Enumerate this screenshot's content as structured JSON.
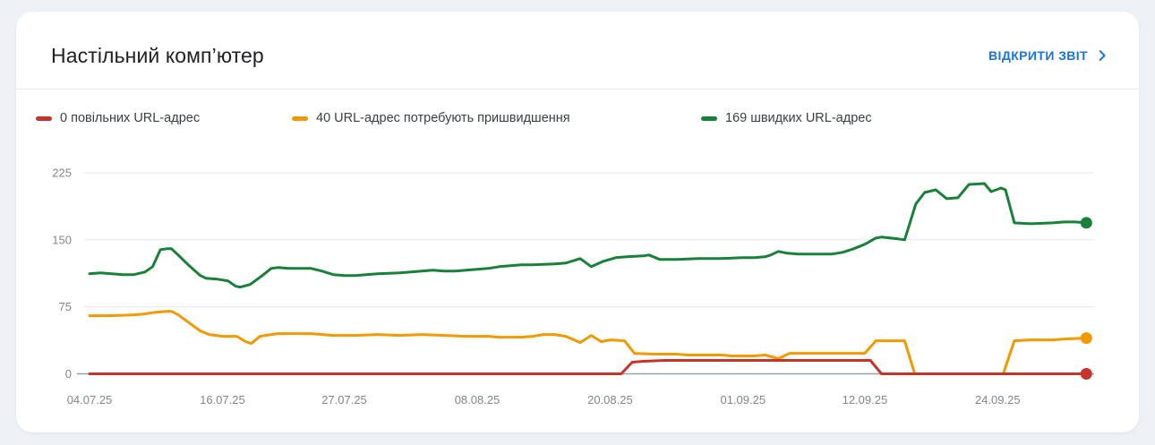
{
  "card": {
    "title": "Настільний комп’ютер",
    "action_label": "ВІДКРИТИ ЗВІТ"
  },
  "colors": {
    "link_blue": "#1a73e8",
    "slow_red": "#c5342b",
    "needs_improvement_orange": "#f29900",
    "fast_green": "#188038",
    "grid_gray": "#e8eaed",
    "axis_gray": "#9aa0a6",
    "tick_label_gray": "#80868b"
  },
  "chart_data": {
    "type": "line",
    "title": "",
    "legend_position": "top",
    "grid": "horizontal",
    "x_axis": {
      "tick_labels": [
        "04.07.25",
        "16.07.25",
        "27.07.25",
        "08.08.25",
        "20.08.25",
        "01.09.25",
        "12.09.25",
        "24.09.25"
      ],
      "tick_days": [
        0,
        12,
        23,
        35,
        47,
        59,
        70,
        82
      ],
      "domain_days": [
        0,
        90
      ]
    },
    "y_axis": {
      "ticks": [
        0,
        75,
        150,
        225
      ],
      "lim": [
        0,
        225
      ]
    },
    "series": [
      {
        "name": "0 повільних URL-адрес",
        "status": "slow",
        "color": "#c5342b",
        "current_value": 0,
        "points": [
          [
            0,
            0
          ],
          [
            48,
            0
          ],
          [
            49,
            13
          ],
          [
            50,
            14
          ],
          [
            52,
            15
          ],
          [
            70.5,
            15
          ],
          [
            71.5,
            0
          ],
          [
            90,
            0
          ]
        ]
      },
      {
        "name": "40 URL-адрес потребують пришвидшення",
        "status": "needs-improvement",
        "color": "#f29900",
        "current_value": 40,
        "points": [
          [
            0,
            65
          ],
          [
            2,
            65
          ],
          [
            4,
            66
          ],
          [
            5,
            67
          ],
          [
            6,
            69
          ],
          [
            7,
            70
          ],
          [
            7.4,
            70
          ],
          [
            8,
            66
          ],
          [
            9,
            57
          ],
          [
            10,
            48
          ],
          [
            10.8,
            44
          ],
          [
            12,
            42
          ],
          [
            13.3,
            42
          ],
          [
            14.1,
            36
          ],
          [
            14.6,
            34
          ],
          [
            15.4,
            42
          ],
          [
            16.4,
            44
          ],
          [
            17,
            45
          ],
          [
            19,
            45
          ],
          [
            20,
            45
          ],
          [
            21,
            44
          ],
          [
            22,
            43
          ],
          [
            24,
            43
          ],
          [
            26,
            44
          ],
          [
            28,
            43
          ],
          [
            30,
            44
          ],
          [
            32,
            43
          ],
          [
            34,
            42
          ],
          [
            36,
            42
          ],
          [
            37,
            41
          ],
          [
            39,
            41
          ],
          [
            40,
            42
          ],
          [
            41,
            44
          ],
          [
            42,
            44
          ],
          [
            43,
            42
          ],
          [
            44.3,
            35
          ],
          [
            45.3,
            43
          ],
          [
            46.2,
            36
          ],
          [
            47,
            38
          ],
          [
            48.3,
            37
          ],
          [
            49.2,
            23
          ],
          [
            51,
            22
          ],
          [
            53,
            22
          ],
          [
            54,
            21
          ],
          [
            57,
            21
          ],
          [
            58,
            20
          ],
          [
            60,
            20
          ],
          [
            61,
            21
          ],
          [
            62.2,
            17
          ],
          [
            63.2,
            23
          ],
          [
            66,
            23
          ],
          [
            70,
            23
          ],
          [
            70.5,
            30
          ],
          [
            71,
            37
          ],
          [
            73.6,
            37
          ],
          [
            74.5,
            0
          ],
          [
            82.5,
            0
          ],
          [
            83.5,
            37
          ],
          [
            85,
            38
          ],
          [
            87,
            38
          ],
          [
            88,
            39
          ],
          [
            90,
            40
          ]
        ]
      },
      {
        "name": "169 швидких URL-адрес",
        "status": "fast",
        "color": "#188038",
        "current_value": 169,
        "points": [
          [
            0,
            112
          ],
          [
            1,
            113
          ],
          [
            2,
            112
          ],
          [
            3,
            111
          ],
          [
            4,
            111
          ],
          [
            5,
            114
          ],
          [
            5.7,
            120
          ],
          [
            6.4,
            139
          ],
          [
            7,
            140
          ],
          [
            7.4,
            140
          ],
          [
            8,
            133
          ],
          [
            9,
            121
          ],
          [
            10,
            110
          ],
          [
            10.5,
            107
          ],
          [
            11.5,
            106
          ],
          [
            12.5,
            104
          ],
          [
            13.2,
            98
          ],
          [
            13.6,
            97
          ],
          [
            14.5,
            100
          ],
          [
            15.5,
            109
          ],
          [
            16.4,
            118
          ],
          [
            17,
            119
          ],
          [
            18,
            118
          ],
          [
            19,
            118
          ],
          [
            20,
            118
          ],
          [
            21,
            115
          ],
          [
            22,
            111
          ],
          [
            23,
            110
          ],
          [
            24,
            110
          ],
          [
            25,
            111
          ],
          [
            26,
            112
          ],
          [
            28,
            113
          ],
          [
            29,
            114
          ],
          [
            30,
            115
          ],
          [
            31,
            116
          ],
          [
            32,
            115
          ],
          [
            33,
            115
          ],
          [
            34,
            116
          ],
          [
            35,
            117
          ],
          [
            36,
            118
          ],
          [
            37,
            120
          ],
          [
            38,
            121
          ],
          [
            39,
            122
          ],
          [
            40,
            122
          ],
          [
            42,
            123
          ],
          [
            43,
            124
          ],
          [
            44.3,
            129
          ],
          [
            45.3,
            120
          ],
          [
            46.4,
            126
          ],
          [
            47.5,
            130
          ],
          [
            48.5,
            131
          ],
          [
            50,
            132
          ],
          [
            50.5,
            133
          ],
          [
            51.5,
            128
          ],
          [
            53,
            128
          ],
          [
            55,
            129
          ],
          [
            57,
            129
          ],
          [
            59,
            130
          ],
          [
            60,
            130
          ],
          [
            61,
            131
          ],
          [
            61.5,
            133
          ],
          [
            62.2,
            137
          ],
          [
            63,
            135
          ],
          [
            64,
            134
          ],
          [
            66,
            134
          ],
          [
            67,
            134
          ],
          [
            68,
            136
          ],
          [
            69,
            140
          ],
          [
            70,
            145
          ],
          [
            71,
            152
          ],
          [
            71.5,
            153
          ],
          [
            73,
            151
          ],
          [
            73.6,
            150
          ],
          [
            74.6,
            190
          ],
          [
            75.4,
            203
          ],
          [
            76.4,
            206
          ],
          [
            77.4,
            196
          ],
          [
            78.4,
            197
          ],
          [
            79.4,
            212
          ],
          [
            80.8,
            213
          ],
          [
            81.4,
            204
          ],
          [
            82.3,
            208
          ],
          [
            82.7,
            206
          ],
          [
            83.5,
            169
          ],
          [
            85,
            168
          ],
          [
            87,
            169
          ],
          [
            88,
            170
          ],
          [
            89,
            170
          ],
          [
            90,
            169
          ]
        ]
      }
    ]
  }
}
